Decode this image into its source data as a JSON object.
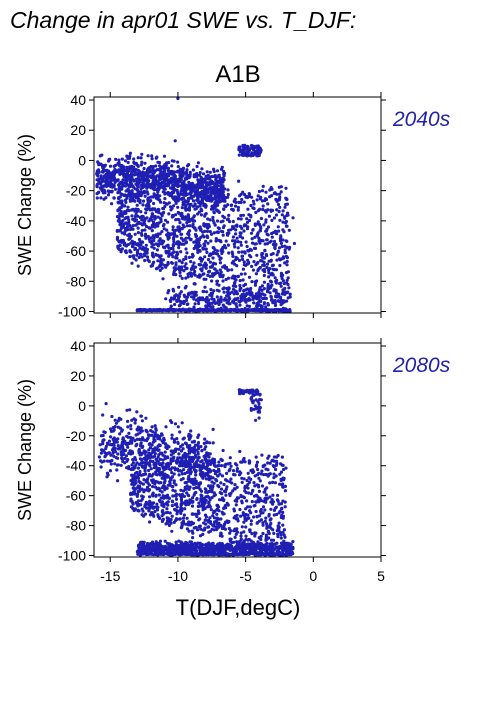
{
  "figure": {
    "title": "Change in apr01 SWE vs. T_DJF:",
    "scenario_label": "A1B",
    "xlabel": "T(DJF,degC)"
  },
  "colors": {
    "points": "#1f1fb4",
    "period_label": "#2323a8",
    "axis": "#000000"
  },
  "chart_data": [
    {
      "type": "scatter",
      "period_label": "2040s",
      "ylabel": "SWE Change (%)",
      "xlim": [
        -16.2,
        5
      ],
      "ylim": [
        -101,
        42
      ],
      "x_ticks": [
        -15,
        -10,
        -5,
        0,
        5
      ],
      "y_ticks": [
        -100,
        -80,
        -60,
        -40,
        -20,
        0,
        20,
        40
      ],
      "x_tick_labels_shown": false,
      "grid": false,
      "point_cloud": {
        "approx_point_count": 3000,
        "x_range": [
          -16,
          -1.5
        ],
        "y_range": [
          -100,
          41
        ],
        "note_regions": [
          {
            "x": [
              -16,
              -7
            ],
            "y": [
              -30,
              5
            ],
            "density": "high"
          },
          {
            "x": [
              -13,
              -2
            ],
            "y": [
              -100,
              -99
            ],
            "density": "high"
          },
          {
            "x": [
              -5.5,
              -3.8
            ],
            "y": [
              3,
              10
            ],
            "density": "high"
          }
        ]
      }
    },
    {
      "type": "scatter",
      "period_label": "2080s",
      "ylabel": "SWE Change (%)",
      "xlim": [
        -16.2,
        5
      ],
      "ylim": [
        -101,
        42
      ],
      "x_ticks": [
        -15,
        -10,
        -5,
        0,
        5
      ],
      "x_tick_labels": [
        "-15",
        "-10",
        "-5",
        "0",
        "5"
      ],
      "y_ticks": [
        -100,
        -80,
        -60,
        -40,
        -20,
        0,
        20,
        40
      ],
      "grid": false,
      "point_cloud": {
        "approx_point_count": 2500,
        "x_range": [
          -16,
          -1.5
        ],
        "y_range": [
          -100,
          12
        ],
        "note_regions": [
          {
            "x": [
              -13,
              -2
            ],
            "y": [
              -100,
              -85
            ],
            "density": "high"
          },
          {
            "x": [
              -5.5,
              -4.2
            ],
            "y": [
              8,
              11
            ],
            "density": "high"
          }
        ]
      }
    }
  ]
}
